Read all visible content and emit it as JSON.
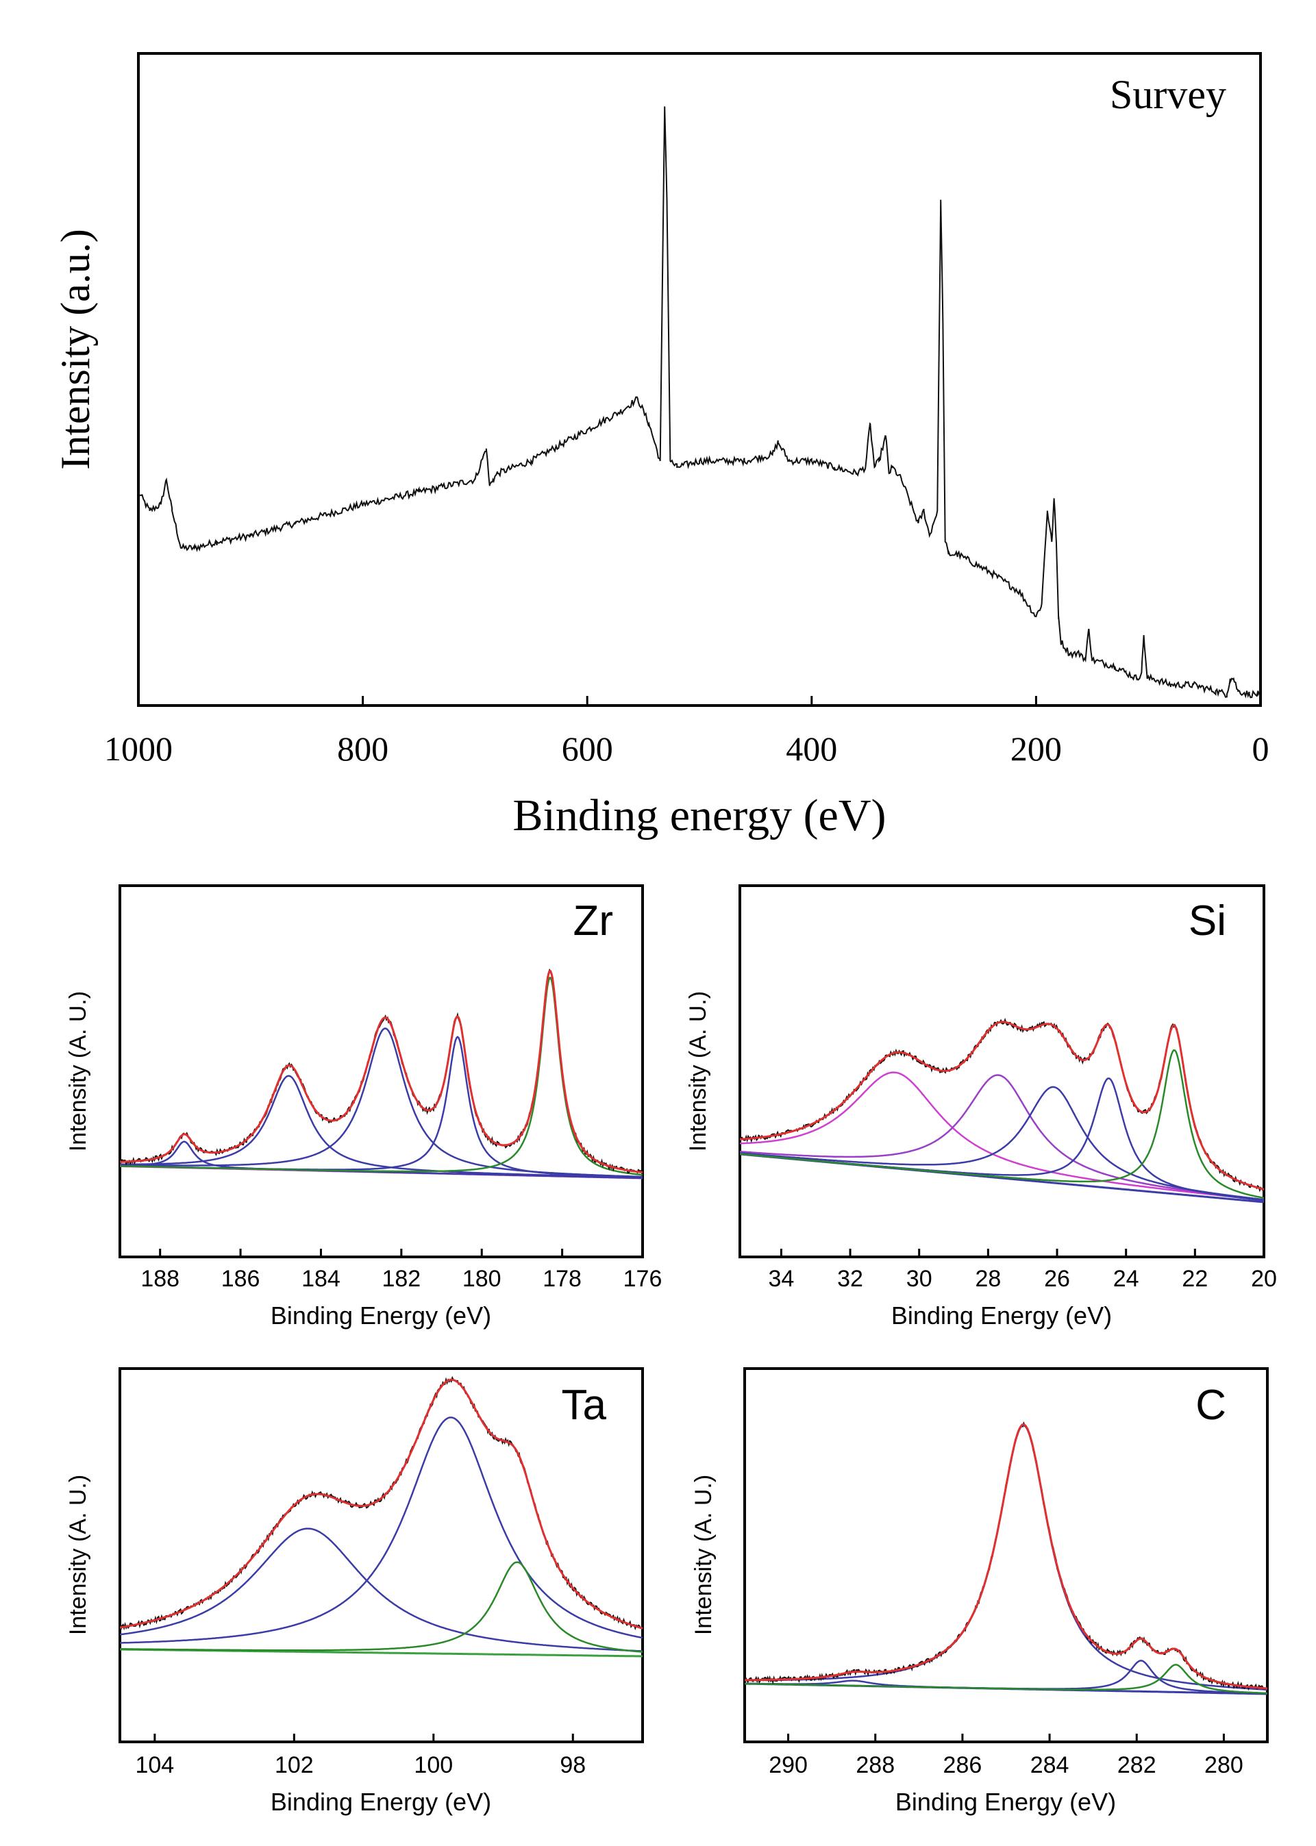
{
  "chart_data": [
    {
      "type": "line",
      "title": "Survey",
      "xlabel": "Binding energy (eV)",
      "ylabel": "Intensity (a.u.)",
      "xlim": [
        1000,
        0
      ],
      "ylim": [
        0,
        100
      ],
      "xticks": [
        1000,
        800,
        600,
        400,
        200,
        0
      ],
      "grid": false,
      "legend": "none",
      "series": [
        {
          "name": "Survey spectrum",
          "color": "#111111",
          "x": [
            1000,
            990,
            980,
            975,
            970,
            962,
            950,
            930,
            900,
            860,
            800,
            750,
            700,
            690,
            687,
            684,
            680,
            650,
            620,
            600,
            570,
            555,
            545,
            535,
            531,
            529,
            526,
            520,
            500,
            460,
            435,
            430,
            420,
            400,
            380,
            360,
            352,
            348,
            344,
            340,
            334,
            331,
            328,
            320,
            305,
            300,
            295,
            288,
            285,
            283,
            281,
            278,
            270,
            240,
            215,
            200,
            195,
            190,
            186,
            184,
            182,
            180,
            178,
            170,
            160,
            156,
            153,
            150,
            130,
            120,
            110,
            106,
            104,
            101,
            95,
            80,
            60,
            40,
            30,
            27,
            24,
            20,
            10,
            2
          ],
          "y": [
            33,
            30,
            31,
            35,
            30,
            24,
            24,
            25,
            26,
            28,
            31,
            33,
            35,
            40,
            34,
            35,
            36,
            38,
            41,
            43,
            46,
            48,
            44,
            38,
            95,
            80,
            38,
            37,
            38,
            38,
            39,
            41,
            38,
            38,
            37,
            36,
            37,
            44,
            37,
            38,
            42,
            36,
            37,
            35,
            28,
            30,
            26,
            30,
            80,
            60,
            25,
            23,
            23,
            20,
            17,
            13,
            15,
            30,
            25,
            32,
            25,
            13,
            9,
            7,
            7,
            6,
            11,
            6,
            5,
            4,
            3,
            4,
            10,
            3,
            3,
            2,
            2,
            1,
            0.5,
            3,
            3,
            1,
            0.5,
            0.5
          ]
        }
      ]
    },
    {
      "type": "line",
      "title": "Zr",
      "xlabel": "Binding Energy (eV)",
      "ylabel": "Intensity (A. U.)",
      "xlim": [
        189,
        176
      ],
      "ylim": [
        0,
        100
      ],
      "xticks": [
        188,
        186,
        184,
        182,
        180,
        178,
        176
      ],
      "grid": false,
      "legend": "none",
      "baseline": {
        "x": [
          189,
          176
        ],
        "y": [
          23.5,
          20
        ]
      },
      "peaks": [
        {
          "center": 187.4,
          "height": 7.6,
          "width": 0.28,
          "color": "#3c3ca8"
        },
        {
          "center": 184.8,
          "height": 27.5,
          "width": 0.6,
          "color": "#3c3ca8"
        },
        {
          "center": 182.4,
          "height": 42,
          "width": 0.62,
          "color": "#3c3ca8"
        },
        {
          "center": 180.6,
          "height": 40,
          "width": 0.32,
          "color": "#3c3ca8"
        },
        {
          "center": 178.3,
          "height": 58,
          "width": 0.3,
          "color": "#2a8a2a"
        }
      ],
      "series": [
        {
          "name": "background",
          "color": "#d040d0",
          "x": [
            189,
            176
          ],
          "y": [
            23.5,
            20
          ]
        },
        {
          "name": "fitted envelope",
          "color": "#e03030"
        },
        {
          "name": "measured",
          "color": "#111111"
        }
      ]
    },
    {
      "type": "line",
      "title": "Si",
      "xlabel": "Binding Energy (eV)",
      "ylabel": "Intensity (A. U.)",
      "xlim": [
        35.2,
        20
      ],
      "ylim": [
        0,
        100
      ],
      "xticks": [
        34,
        32,
        30,
        28,
        26,
        24,
        22,
        20
      ],
      "grid": false,
      "legend": "none",
      "baseline": {
        "x": [
          35.2,
          20
        ],
        "y": [
          27,
          13
        ]
      },
      "peaks": [
        {
          "center": 30.7,
          "height": 28,
          "width": 1.6,
          "color": "#d040d0"
        },
        {
          "center": 27.7,
          "height": 30,
          "width": 1.2,
          "color": "#9a40c8"
        },
        {
          "center": 26.1,
          "height": 28,
          "width": 1.0,
          "color": "#3c3ca8"
        },
        {
          "center": 24.5,
          "height": 32,
          "width": 0.55,
          "color": "#3c3ca8"
        },
        {
          "center": 22.6,
          "height": 42,
          "width": 0.45,
          "color": "#2a8a2a"
        }
      ],
      "series": [
        {
          "name": "background",
          "color": "#3c3ca8",
          "x": [
            35.2,
            20
          ],
          "y": [
            27,
            13
          ]
        },
        {
          "name": "fitted envelope",
          "color": "#e03030"
        },
        {
          "name": "measured",
          "color": "#111111"
        }
      ]
    },
    {
      "type": "line",
      "title": "Ta",
      "xlabel": "Binding Energy (eV)",
      "ylabel": "Intensity (A. U.)",
      "xlim": [
        104.5,
        97
      ],
      "ylim": [
        0,
        100
      ],
      "xticks": [
        104,
        102,
        100,
        98
      ],
      "grid": false,
      "legend": "none",
      "baseline": {
        "x": [
          104.5,
          97
        ],
        "y": [
          24,
          22
        ]
      },
      "peaks": [
        {
          "center": 101.8,
          "height": 36,
          "width": 1.0,
          "color": "#3c3ca8"
        },
        {
          "center": 99.75,
          "height": 69,
          "width": 0.8,
          "color": "#3c3ca8"
        },
        {
          "center": 98.8,
          "height": 27,
          "width": 0.4,
          "color": "#2a8a2a"
        }
      ],
      "series": [
        {
          "name": "background",
          "color": "#3aa040",
          "x": [
            104.5,
            97
          ],
          "y": [
            24,
            22
          ]
        },
        {
          "name": "fitted envelope",
          "color": "#e03030"
        },
        {
          "name": "measured",
          "color": "#111111"
        }
      ]
    },
    {
      "type": "line",
      "title": "C",
      "xlabel": "Binding Energy (eV)",
      "ylabel": "Intensity (A. U.)",
      "xlim": [
        291,
        279
      ],
      "ylim": [
        0,
        100
      ],
      "xticks": [
        290,
        288,
        286,
        284,
        282,
        280
      ],
      "grid": false,
      "legend": "none",
      "baseline": {
        "x": [
          291,
          279
        ],
        "y": [
          14,
          11
        ]
      },
      "peaks": [
        {
          "center": 288.5,
          "height": 1.5,
          "width": 0.5,
          "color": "#3c3ca8"
        },
        {
          "center": 284.6,
          "height": 77,
          "width": 0.72,
          "color": "#3c3ca8"
        },
        {
          "center": 281.9,
          "height": 9,
          "width": 0.35,
          "color": "#3c3ca8"
        },
        {
          "center": 281.1,
          "height": 8,
          "width": 0.35,
          "color": "#2a8a2a"
        }
      ],
      "series": [
        {
          "name": "background",
          "color": "#3c3ca8",
          "x": [
            291,
            279
          ],
          "y": [
            14,
            11
          ]
        },
        {
          "name": "fitted envelope",
          "color": "#e03030"
        },
        {
          "name": "measured",
          "color": "#111111"
        }
      ]
    }
  ]
}
